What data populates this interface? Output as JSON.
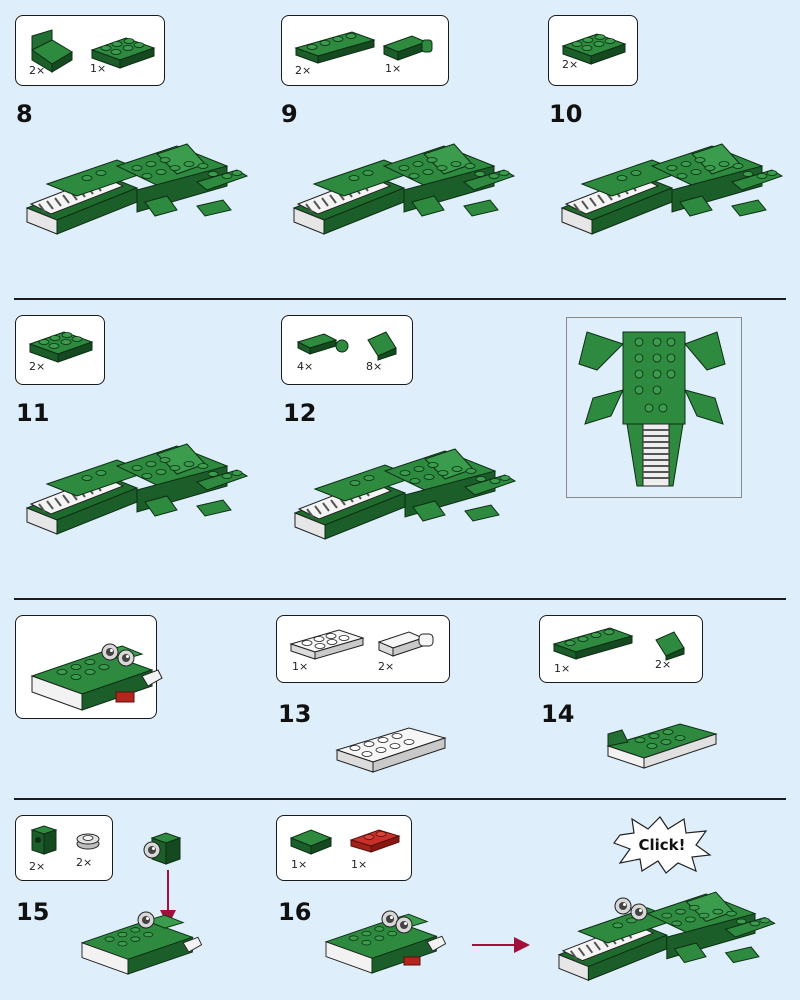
{
  "steps": [
    {
      "number": "8",
      "parts": [
        {
          "qty": "2×"
        },
        {
          "qty": "1×"
        }
      ]
    },
    {
      "number": "9",
      "parts": [
        {
          "qty": "2×"
        },
        {
          "qty": "1×"
        }
      ]
    },
    {
      "number": "10",
      "parts": [
        {
          "qty": "2×"
        }
      ]
    },
    {
      "number": "11",
      "parts": [
        {
          "qty": "2×"
        }
      ]
    },
    {
      "number": "12",
      "parts": [
        {
          "qty": "4×"
        },
        {
          "qty": "8×"
        }
      ]
    },
    {
      "number": "13",
      "parts": [
        {
          "qty": "1×"
        },
        {
          "qty": "2×"
        }
      ]
    },
    {
      "number": "14",
      "parts": [
        {
          "qty": "1×"
        },
        {
          "qty": "2×"
        }
      ]
    },
    {
      "number": "15",
      "parts": [
        {
          "qty": "2×"
        },
        {
          "qty": "2×"
        }
      ]
    },
    {
      "number": "16",
      "parts": [
        {
          "qty": "1×"
        },
        {
          "qty": "1×"
        }
      ]
    }
  ],
  "callout": {
    "text": "Click!"
  },
  "colors": {
    "background": "#deeefa",
    "brick_green": "#1f6b2e",
    "brick_green_light": "#2e8a3f",
    "brick_white": "#f4f4f4",
    "brick_gray": "#9a9a9a",
    "brick_red": "#b3261e",
    "arrow": "#a0103a"
  }
}
